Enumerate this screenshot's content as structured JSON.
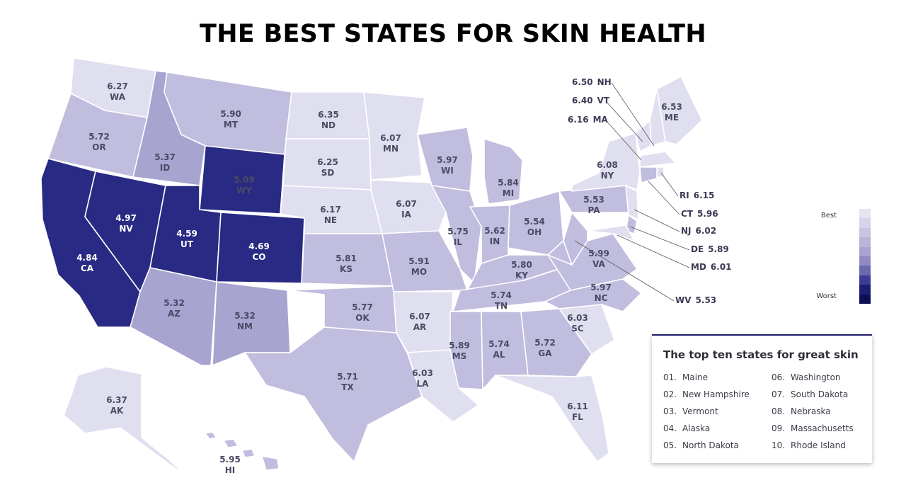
{
  "title": "THE BEST STATES FOR SKIN HEALTH",
  "colors": {
    "best": "#dfdff0",
    "light": "#c0bddf",
    "mid": "#a7a4d0",
    "worst_band": "#292a84",
    "worst": "#0d0f54",
    "accent": "#1d1d6b"
  },
  "states": [
    {
      "code": "WA",
      "score": "6.27"
    },
    {
      "code": "OR",
      "score": "5.72"
    },
    {
      "code": "CA",
      "score": "4.84"
    },
    {
      "code": "NV",
      "score": "4.97"
    },
    {
      "code": "ID",
      "score": "5.37"
    },
    {
      "code": "MT",
      "score": "5.90"
    },
    {
      "code": "WY",
      "score": "5.09"
    },
    {
      "code": "UT",
      "score": "4.59"
    },
    {
      "code": "CO",
      "score": "4.69"
    },
    {
      "code": "AZ",
      "score": "5.32"
    },
    {
      "code": "NM",
      "score": "5.32"
    },
    {
      "code": "ND",
      "score": "6.35"
    },
    {
      "code": "SD",
      "score": "6.25"
    },
    {
      "code": "NE",
      "score": "6.17"
    },
    {
      "code": "KS",
      "score": "5.81"
    },
    {
      "code": "OK",
      "score": "5.77"
    },
    {
      "code": "TX",
      "score": "5.71"
    },
    {
      "code": "MN",
      "score": "6.07"
    },
    {
      "code": "IA",
      "score": "6.07"
    },
    {
      "code": "MO",
      "score": "5.91"
    },
    {
      "code": "AR",
      "score": "6.07"
    },
    {
      "code": "LA",
      "score": "6.03"
    },
    {
      "code": "WI",
      "score": "5.97"
    },
    {
      "code": "IL",
      "score": "5.75"
    },
    {
      "code": "MI",
      "score": "5.84"
    },
    {
      "code": "IN",
      "score": "5.62"
    },
    {
      "code": "OH",
      "score": "5.54"
    },
    {
      "code": "KY",
      "score": "5.80"
    },
    {
      "code": "TN",
      "score": "5.74"
    },
    {
      "code": "MS",
      "score": "5.89"
    },
    {
      "code": "AL",
      "score": "5.74"
    },
    {
      "code": "GA",
      "score": "5.72"
    },
    {
      "code": "FL",
      "score": "6.11"
    },
    {
      "code": "SC",
      "score": "6.03"
    },
    {
      "code": "NC",
      "score": "5.97"
    },
    {
      "code": "VA",
      "score": "5.99"
    },
    {
      "code": "WV",
      "score": "5.53"
    },
    {
      "code": "PA",
      "score": "5.53"
    },
    {
      "code": "NY",
      "score": "6.08"
    },
    {
      "code": "ME",
      "score": "6.53"
    },
    {
      "code": "AK",
      "score": "6.37"
    },
    {
      "code": "HI",
      "score": "5.95"
    },
    {
      "code": "NH",
      "score": "6.50"
    },
    {
      "code": "VT",
      "score": "6.40"
    },
    {
      "code": "MA",
      "score": "6.16"
    },
    {
      "code": "RI",
      "score": "6.15"
    },
    {
      "code": "CT",
      "score": "5.96"
    },
    {
      "code": "NJ",
      "score": "6.02"
    },
    {
      "code": "DE",
      "score": "5.89"
    },
    {
      "code": "MD",
      "score": "6.01"
    }
  ],
  "legend": {
    "best_label": "Best",
    "worst_label": "Worst",
    "swatches": [
      "#e4e4f2",
      "#d5d4ea",
      "#c7c5e2",
      "#b7b5d8",
      "#a7a4cf",
      "#8f8bc2",
      "#6c69b0",
      "#3d3d95",
      "#1d1e73",
      "#0d0f54"
    ]
  },
  "top_ten": {
    "heading": "The top ten states for great skin",
    "items": [
      {
        "rank": "01.",
        "name": "Maine"
      },
      {
        "rank": "02.",
        "name": "New Hampshire"
      },
      {
        "rank": "03.",
        "name": "Vermont"
      },
      {
        "rank": "04.",
        "name": "Alaska"
      },
      {
        "rank": "05.",
        "name": "North Dakota"
      },
      {
        "rank": "06.",
        "name": "Washington"
      },
      {
        "rank": "07.",
        "name": "South Dakota"
      },
      {
        "rank": "08.",
        "name": "Nebraska"
      },
      {
        "rank": "09.",
        "name": "Massachusetts"
      },
      {
        "rank": "10.",
        "name": "Rhode Island"
      }
    ]
  }
}
